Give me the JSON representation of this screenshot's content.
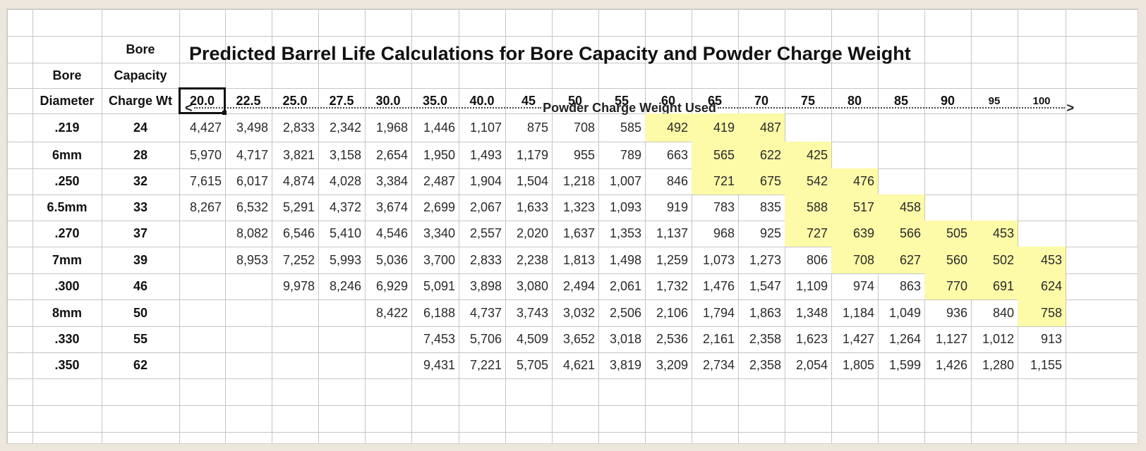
{
  "title": "Predicted Barrel Life Calculations for Bore Capacity and Powder Charge Weight",
  "banner": "Powder Charge Weight Used",
  "col_headers": {
    "bore_line1": "Bore",
    "bore_line2": "Diameter",
    "cap_line1": "Bore",
    "cap_line2": "Capacity",
    "cap_line3": "Charge Wt"
  },
  "charges": [
    "20.0",
    "22.5",
    "25.0",
    "27.5",
    "30.0",
    "35.0",
    "40.0",
    "45",
    "50",
    "55",
    "60",
    "65",
    "70",
    "75",
    "80",
    "85",
    "90",
    "95",
    "100"
  ],
  "highlight_color": "#fdfaa8",
  "rows": [
    {
      "bore": ".219",
      "capacity": "24",
      "values": [
        "4,427",
        "3,498",
        "2,833",
        "2,342",
        "1,968",
        "1,446",
        "1,107",
        "875",
        "708",
        "585",
        "492",
        "419",
        "487",
        "",
        "",
        "",
        "",
        "",
        ""
      ],
      "highlight": [
        10,
        11,
        12
      ]
    },
    {
      "bore": "6mm",
      "capacity": "28",
      "values": [
        "5,970",
        "4,717",
        "3,821",
        "3,158",
        "2,654",
        "1,950",
        "1,493",
        "1,179",
        "955",
        "789",
        "663",
        "565",
        "622",
        "425",
        "",
        "",
        "",
        "",
        ""
      ],
      "highlight": [
        11,
        12,
        13
      ]
    },
    {
      "bore": ".250",
      "capacity": "32",
      "values": [
        "7,615",
        "6,017",
        "4,874",
        "4,028",
        "3,384",
        "2,487",
        "1,904",
        "1,504",
        "1,218",
        "1,007",
        "846",
        "721",
        "675",
        "542",
        "476",
        "",
        "",
        "",
        ""
      ],
      "highlight": [
        11,
        12,
        13,
        14
      ]
    },
    {
      "bore": "6.5mm",
      "capacity": "33",
      "values": [
        "8,267",
        "6,532",
        "5,291",
        "4,372",
        "3,674",
        "2,699",
        "2,067",
        "1,633",
        "1,323",
        "1,093",
        "919",
        "783",
        "835",
        "588",
        "517",
        "458",
        "",
        "",
        ""
      ],
      "highlight": [
        13,
        14,
        15
      ]
    },
    {
      "bore": ".270",
      "capacity": "37",
      "values": [
        "",
        "8,082",
        "6,546",
        "5,410",
        "4,546",
        "3,340",
        "2,557",
        "2,020",
        "1,637",
        "1,353",
        "1,137",
        "968",
        "925",
        "727",
        "639",
        "566",
        "505",
        "453",
        ""
      ],
      "highlight": [
        13,
        14,
        15,
        16,
        17
      ]
    },
    {
      "bore": "7mm",
      "capacity": "39",
      "values": [
        "",
        "8,953",
        "7,252",
        "5,993",
        "5,036",
        "3,700",
        "2,833",
        "2,238",
        "1,813",
        "1,498",
        "1,259",
        "1,073",
        "1,273",
        "806",
        "708",
        "627",
        "560",
        "502",
        "453"
      ],
      "highlight": [
        14,
        15,
        16,
        17,
        18
      ]
    },
    {
      "bore": ".300",
      "capacity": "46",
      "values": [
        "",
        "",
        "9,978",
        "8,246",
        "6,929",
        "5,091",
        "3,898",
        "3,080",
        "2,494",
        "2,061",
        "1,732",
        "1,476",
        "1,547",
        "1,109",
        "974",
        "863",
        "770",
        "691",
        "624"
      ],
      "highlight": [
        16,
        17,
        18
      ]
    },
    {
      "bore": "8mm",
      "capacity": "50",
      "values": [
        "",
        "",
        "",
        "",
        "8,422",
        "6,188",
        "4,737",
        "3,743",
        "3,032",
        "2,506",
        "2,106",
        "1,794",
        "1,863",
        "1,348",
        "1,184",
        "1,049",
        "936",
        "840",
        "758"
      ],
      "highlight": [
        18
      ]
    },
    {
      "bore": ".330",
      "capacity": "55",
      "values": [
        "",
        "",
        "",
        "",
        "",
        "7,453",
        "5,706",
        "4,509",
        "3,652",
        "3,018",
        "2,536",
        "2,161",
        "2,358",
        "1,623",
        "1,427",
        "1,264",
        "1,127",
        "1,012",
        "913"
      ],
      "highlight": []
    },
    {
      "bore": ".350",
      "capacity": "62",
      "values": [
        "",
        "",
        "",
        "",
        "",
        "9,431",
        "7,221",
        "5,705",
        "4,621",
        "3,819",
        "3,209",
        "2,734",
        "2,358",
        "2,054",
        "1,805",
        "1,599",
        "1,426",
        "1,280",
        "1,155"
      ],
      "highlight": []
    }
  ]
}
